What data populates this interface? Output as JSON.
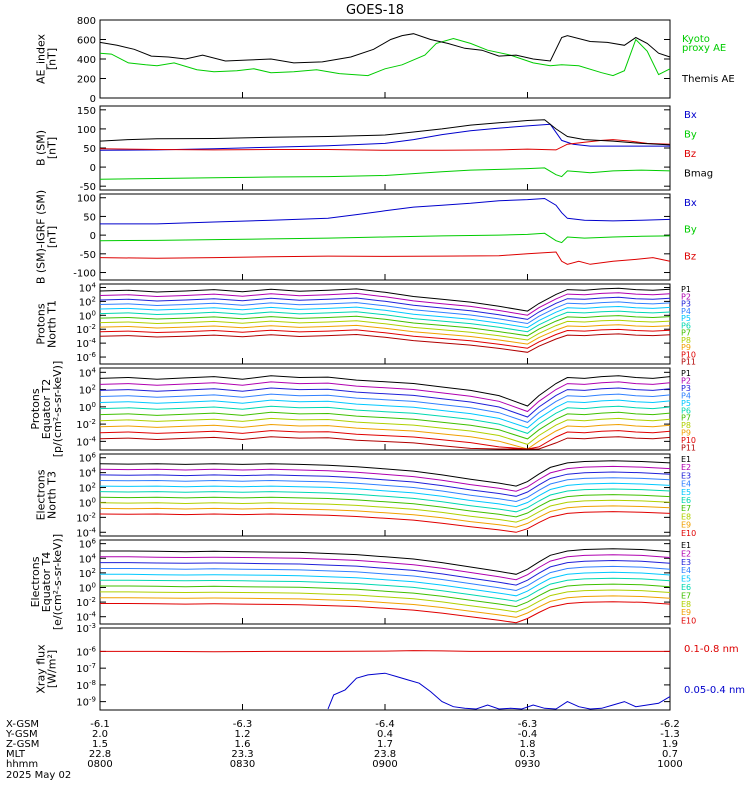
{
  "title": "GOES-18",
  "colors": {
    "black": "#000000",
    "green": "#00cc00",
    "blue": "#0000cc",
    "red": "#dd0000",
    "ladder": [
      "#000000",
      "#b000b0",
      "#2020d8",
      "#3080ff",
      "#00c8ff",
      "#00d8b0",
      "#40c000",
      "#b0d000",
      "#f0a000",
      "#e00000",
      "#b00000"
    ]
  },
  "chart_data": [
    {
      "type": "line",
      "panel": "ae",
      "ylabel": [
        "AE_index",
        "[nT]"
      ],
      "yticks": [
        "800",
        "600",
        "400",
        "200",
        "0"
      ],
      "ylim": [
        0,
        800
      ],
      "series": [
        {
          "name": "Kyoto proxy AE",
          "color": "green",
          "x": [
            0,
            2,
            5,
            8,
            10,
            13,
            17,
            20,
            24,
            27,
            30,
            34,
            38,
            42,
            47,
            50,
            53,
            57,
            59,
            62,
            65,
            68,
            72,
            76,
            79,
            81,
            84,
            88,
            90,
            92,
            94,
            96,
            98,
            100
          ],
          "y": [
            460,
            450,
            360,
            340,
            330,
            360,
            290,
            270,
            280,
            300,
            260,
            270,
            290,
            250,
            230,
            300,
            340,
            440,
            560,
            610,
            560,
            490,
            440,
            360,
            330,
            340,
            330,
            260,
            230,
            280,
            600,
            480,
            240,
            300
          ]
        },
        {
          "name": "Themis AE",
          "color": "black",
          "x": [
            0,
            3,
            6,
            9,
            12,
            15,
            18,
            22,
            26,
            30,
            34,
            39,
            44,
            48,
            51,
            53,
            55,
            58,
            61,
            64,
            67,
            70,
            73,
            76,
            79,
            81,
            82,
            86,
            89,
            92,
            94,
            96,
            98,
            100
          ],
          "y": [
            570,
            540,
            500,
            430,
            420,
            400,
            440,
            380,
            390,
            400,
            360,
            370,
            420,
            500,
            600,
            640,
            660,
            600,
            560,
            510,
            490,
            430,
            440,
            400,
            380,
            620,
            640,
            580,
            570,
            540,
            620,
            560,
            460,
            420
          ]
        }
      ],
      "legend_lines": [
        "Kyoto",
        "proxy AE",
        "Themis AE"
      ]
    },
    {
      "type": "line",
      "panel": "bsm",
      "ylabel": [
        "B (SM)",
        "[nT]"
      ],
      "yticks": [
        "150",
        "100",
        "50",
        "0",
        "-50"
      ],
      "ylim": [
        -60,
        160
      ],
      "series": [
        {
          "name": "Bx",
          "color": "blue",
          "x": [
            0,
            10,
            20,
            30,
            40,
            50,
            55,
            60,
            65,
            70,
            75,
            79,
            81,
            83,
            86,
            90,
            95,
            100
          ],
          "y": [
            44,
            45,
            48,
            52,
            56,
            62,
            72,
            85,
            95,
            102,
            108,
            112,
            70,
            60,
            55,
            55,
            55,
            55
          ]
        },
        {
          "name": "By",
          "color": "green",
          "x": [
            0,
            10,
            20,
            30,
            40,
            50,
            55,
            60,
            65,
            70,
            75,
            78,
            80,
            81,
            82,
            84,
            86,
            90,
            95,
            100
          ],
          "y": [
            -32,
            -30,
            -28,
            -26,
            -25,
            -22,
            -17,
            -12,
            -8,
            -6,
            -4,
            -2,
            -20,
            -25,
            -10,
            -12,
            -15,
            -10,
            -8,
            -10
          ]
        },
        {
          "name": "Bz",
          "color": "red",
          "x": [
            0,
            10,
            20,
            30,
            40,
            50,
            60,
            70,
            75,
            80,
            82,
            85,
            88,
            90,
            93,
            96,
            100
          ],
          "y": [
            48,
            46,
            45,
            46,
            46,
            44,
            44,
            45,
            47,
            45,
            60,
            65,
            70,
            72,
            68,
            62,
            60
          ]
        },
        {
          "name": "Bmag",
          "color": "black",
          "x": [
            0,
            5,
            10,
            20,
            30,
            40,
            50,
            55,
            60,
            65,
            70,
            75,
            78,
            80,
            82,
            85,
            90,
            95,
            100
          ],
          "y": [
            68,
            72,
            74,
            75,
            78,
            80,
            84,
            92,
            100,
            110,
            116,
            122,
            124,
            100,
            80,
            72,
            68,
            62,
            58
          ]
        }
      ],
      "legend_lines": [
        "Bx",
        "By",
        "Bz",
        "Bmag"
      ]
    },
    {
      "type": "line",
      "panel": "bigrf",
      "ylabel": [
        "B (SM)-IGRF (SM)",
        "[nT]"
      ],
      "yticks": [
        "100",
        "50",
        "0",
        "-50",
        "-100"
      ],
      "ylim": [
        -120,
        110
      ],
      "series": [
        {
          "name": "Bx",
          "color": "blue",
          "x": [
            0,
            10,
            20,
            30,
            40,
            45,
            50,
            55,
            60,
            65,
            70,
            75,
            78,
            80,
            81,
            82,
            85,
            90,
            95,
            100
          ],
          "y": [
            30,
            30,
            35,
            40,
            45,
            55,
            65,
            75,
            80,
            85,
            92,
            95,
            98,
            80,
            60,
            45,
            40,
            38,
            40,
            42
          ]
        },
        {
          "name": "By",
          "color": "green",
          "x": [
            0,
            10,
            20,
            30,
            40,
            50,
            60,
            70,
            75,
            78,
            80,
            81,
            82,
            85,
            90,
            95,
            100
          ],
          "y": [
            -15,
            -14,
            -12,
            -10,
            -8,
            -5,
            -2,
            0,
            2,
            5,
            -15,
            -20,
            -5,
            -8,
            -5,
            -3,
            -2
          ]
        },
        {
          "name": "Bz",
          "color": "red",
          "x": [
            0,
            10,
            20,
            30,
            40,
            50,
            60,
            70,
            75,
            80,
            81,
            82,
            84,
            86,
            90,
            94,
            97,
            100
          ],
          "y": [
            -60,
            -62,
            -60,
            -58,
            -56,
            -57,
            -56,
            -55,
            -50,
            -45,
            -70,
            -78,
            -70,
            -78,
            -70,
            -65,
            -60,
            -70
          ]
        }
      ],
      "legend_lines": [
        "Bx",
        "By",
        "Bz"
      ]
    },
    {
      "type": "line",
      "panel": "pnorth",
      "ylabel": [
        "Protons",
        "North T1"
      ],
      "yticks": [
        "10^4",
        "10^2",
        "10^0",
        "10^-2",
        "10^-4",
        "10^-6"
      ],
      "ylog": [
        -7,
        4.5
      ],
      "ladder": true,
      "top": 3.5,
      "step": 0.65,
      "shape_x": [
        0,
        5,
        10,
        15,
        20,
        25,
        30,
        35,
        40,
        45,
        50,
        55,
        60,
        65,
        70,
        75,
        77,
        80,
        82,
        85,
        88,
        91,
        94,
        97,
        100
      ],
      "shape_d": [
        0,
        0.1,
        -0.15,
        0,
        0.2,
        -0.1,
        0.25,
        -0.05,
        0.1,
        0.3,
        -0.2,
        -0.8,
        -1.2,
        -1.6,
        -2.2,
        -2.9,
        -1.8,
        -0.5,
        0.2,
        0.1,
        0.3,
        0.4,
        0.2,
        0.1,
        0.25
      ],
      "legend_lines": [
        "P1",
        "P2",
        "P3",
        "P4",
        "P5",
        "P6",
        "P7",
        "P8",
        "P9",
        "P10",
        "P11"
      ]
    },
    {
      "type": "line",
      "panel": "pequator",
      "ylabel": [
        "Protons",
        "Equator T2",
        "[p/(cm²-s-sr-keV)]"
      ],
      "yticks": [
        "10^4",
        "10^2",
        "10^0",
        "10^-2",
        "10^-4"
      ],
      "ylog": [
        -5,
        4.5
      ],
      "ladder": true,
      "top": 3.3,
      "step": 0.7,
      "shape_x": [
        0,
        5,
        10,
        15,
        20,
        25,
        30,
        35,
        40,
        45,
        50,
        55,
        60,
        65,
        70,
        75,
        77,
        80,
        82,
        85,
        88,
        91,
        94,
        97,
        100
      ],
      "shape_d": [
        0,
        0.1,
        -0.1,
        0.05,
        0.2,
        -0.1,
        0.3,
        0.1,
        0.15,
        -0.2,
        -0.4,
        -0.6,
        -1.0,
        -1.4,
        -2.0,
        -3.2,
        -2.0,
        -0.6,
        0.1,
        0.0,
        0.2,
        0.3,
        0.1,
        0.0,
        0.2
      ],
      "legend_lines": [
        "P1",
        "P2",
        "P3",
        "P4",
        "P5",
        "P6",
        "P7",
        "P8",
        "P9",
        "P10",
        "P11"
      ]
    },
    {
      "type": "line",
      "panel": "enorth",
      "ylabel": [
        "Electrons",
        "North T3"
      ],
      "yticks": [
        "10^6",
        "10^4",
        "10^2",
        "10^0",
        "10^-2",
        "10^-4"
      ],
      "ylog": [
        -4.5,
        6.5
      ],
      "ladder": true,
      "top": 5.2,
      "step": 0.75,
      "shape_x": [
        0,
        5,
        10,
        15,
        20,
        25,
        30,
        35,
        40,
        45,
        50,
        55,
        60,
        65,
        70,
        73,
        75,
        77,
        79,
        82,
        85,
        90,
        95,
        100
      ],
      "shape_d": [
        0,
        -0.05,
        0.0,
        -0.1,
        0.0,
        -0.1,
        0.0,
        -0.1,
        -0.2,
        -0.4,
        -0.7,
        -1.0,
        -1.5,
        -2.1,
        -2.6,
        -3.0,
        -2.4,
        -1.4,
        -0.5,
        0.1,
        0.3,
        0.4,
        0.3,
        0.1
      ],
      "legend_lines": [
        "E1",
        "E2",
        "E3",
        "E4",
        "E5",
        "E6",
        "E7",
        "E8",
        "E9",
        "E10"
      ]
    },
    {
      "type": "line",
      "panel": "eequator",
      "ylabel": [
        "Electrons",
        "Equator T4",
        "[e/(cm²-s-sr-keV)]"
      ],
      "yticks": [
        "10^6",
        "10^4",
        "10^2",
        "10^0",
        "10^-2",
        "10^-4"
      ],
      "ylog": [
        -5,
        6.5
      ],
      "ladder": true,
      "top": 5.0,
      "step": 0.8,
      "shape_x": [
        0,
        5,
        10,
        15,
        20,
        25,
        30,
        35,
        40,
        45,
        50,
        55,
        60,
        65,
        70,
        73,
        75,
        77,
        79,
        82,
        85,
        90,
        95,
        100
      ],
      "shape_d": [
        0,
        0.0,
        -0.05,
        -0.1,
        -0.05,
        -0.1,
        -0.15,
        -0.2,
        -0.35,
        -0.5,
        -0.8,
        -1.1,
        -1.6,
        -2.2,
        -2.8,
        -3.2,
        -2.5,
        -1.5,
        -0.6,
        0.0,
        0.2,
        0.3,
        0.2,
        -0.1
      ],
      "legend_lines": [
        "E1",
        "E2",
        "E3",
        "E4",
        "E5",
        "E6",
        "E7",
        "E8",
        "E9",
        "E10"
      ]
    },
    {
      "type": "line",
      "panel": "xray",
      "ylabel": [
        "Xray  flux",
        "[W/m²]"
      ],
      "yticks": [
        "10^-3",
        "10^-6",
        "10^-7",
        "10^-8",
        "10^-9"
      ],
      "ylog": [
        -9.5,
        -4.6
      ],
      "series": [
        {
          "name": "0.1-0.8 nm",
          "color": "red",
          "x": [
            0,
            10,
            20,
            30,
            40,
            50,
            55,
            60,
            65,
            70,
            75,
            80,
            85,
            90,
            95,
            100
          ],
          "y": [
            -6.0,
            -6.0,
            -6.02,
            -6.0,
            -6.0,
            -5.98,
            -5.95,
            -5.97,
            -6.0,
            -6.0,
            -6.0,
            -6.0,
            -6.0,
            -6.0,
            -6.0,
            -6.0
          ]
        },
        {
          "name": "0.05-0.4 nm",
          "color": "blue",
          "x": [
            40,
            41,
            43,
            45,
            47,
            50,
            52,
            54,
            56,
            58,
            60,
            62,
            64,
            66,
            68,
            70,
            72,
            74,
            76,
            78,
            80,
            82,
            84,
            86,
            88,
            90,
            92,
            94,
            96,
            98,
            100
          ],
          "y": [
            -9.5,
            -8.6,
            -8.3,
            -7.6,
            -7.4,
            -7.3,
            -7.5,
            -7.7,
            -7.9,
            -8.4,
            -9.0,
            -9.3,
            -9.4,
            -9.5,
            -9.2,
            -9.5,
            -9.4,
            -9.6,
            -9.2,
            -9.4,
            -9.5,
            -9.0,
            -9.3,
            -9.5,
            -9.4,
            -9.2,
            -9.0,
            -9.3,
            -9.2,
            -9.1,
            -8.7
          ]
        }
      ],
      "legend_lines": [
        "0.1-0.8 nm",
        "0.05-0.4 nm"
      ]
    }
  ],
  "footer": {
    "row_labels": [
      "X-GSM",
      "Y-GSM",
      "Z-GSM",
      "MLT",
      "hhmm",
      "2025 May 02"
    ],
    "columns": [
      [
        "-6.1",
        "2.0",
        "1.5",
        "22.8",
        "0800"
      ],
      [
        "-6.3",
        "1.2",
        "1.6",
        "23.3",
        "0830"
      ],
      [
        "-6.4",
        "0.4",
        "1.7",
        "23.8",
        "0900"
      ],
      [
        "-6.3",
        "-0.4",
        "1.8",
        "0.3",
        "0930"
      ],
      [
        "-6.2",
        "-1.3",
        "1.9",
        "0.7",
        "1000"
      ]
    ]
  }
}
